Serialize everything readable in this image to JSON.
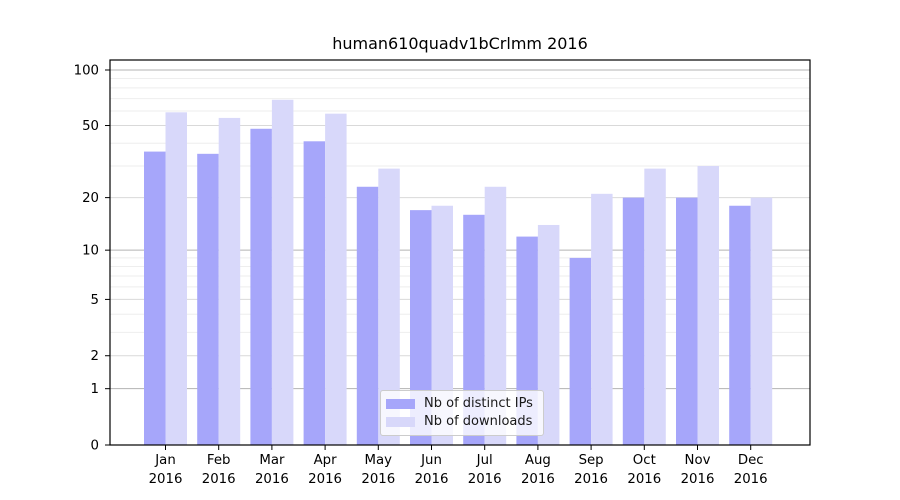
{
  "chart_data": {
    "type": "bar",
    "title": "human610quadv1bCrlmm 2016",
    "categories": [
      "Jan",
      "Feb",
      "Mar",
      "Apr",
      "May",
      "Jun",
      "Jul",
      "Aug",
      "Sep",
      "Oct",
      "Nov",
      "Dec"
    ],
    "x_tick_year": "2016",
    "series": [
      {
        "name": "Nb of distinct IPs",
        "color": "#a6a6fa",
        "values": [
          36,
          35,
          48,
          41,
          23,
          17,
          16,
          12,
          9,
          20,
          20,
          18
        ]
      },
      {
        "name": "Nb of downloads",
        "color": "#d8d8fa",
        "values": [
          59,
          55,
          69,
          58,
          29,
          18,
          23,
          14,
          21,
          29,
          30,
          20
        ]
      }
    ],
    "y_axis": {
      "scale": "log1p",
      "major_ticks": [
        0,
        1,
        2,
        5,
        10,
        20,
        50,
        100
      ],
      "minor_gridlines": [
        3,
        4,
        6,
        7,
        8,
        9,
        30,
        40,
        60,
        70,
        80,
        90
      ],
      "top_value": 113
    },
    "legend_position": "lower center",
    "grid": true
  },
  "colors": {
    "grid_decade": "#b3b3b3",
    "grid_major": "#d9d9d9",
    "grid_minor": "#eeeeee",
    "axis": "#000000",
    "tick_label": "#000000"
  }
}
